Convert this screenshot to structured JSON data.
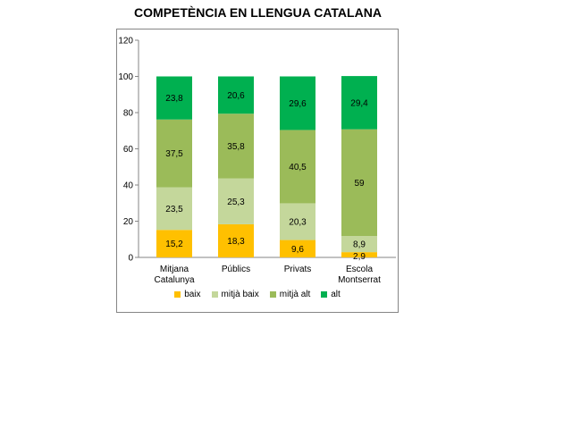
{
  "title": "COMPETÈNCIA EN LLENGUA CATALANA",
  "chart_data": {
    "type": "bar",
    "stacked": true,
    "title": "COMPETÈNCIA EN LLENGUA CATALANA",
    "categories": [
      [
        "Mitjana",
        "Catalunya"
      ],
      [
        "Públics"
      ],
      [
        "Privats"
      ],
      [
        "Escola",
        "Montserrat"
      ]
    ],
    "series": [
      {
        "name": "baix",
        "color": "#FFC000",
        "values": [
          15.2,
          18.3,
          9.6,
          2.9
        ]
      },
      {
        "name": "mitjà baix",
        "color": "#C4D79B",
        "values": [
          23.5,
          25.3,
          20.3,
          8.9
        ]
      },
      {
        "name": "mitjà alt",
        "color": "#9BBB59",
        "values": [
          37.5,
          35.8,
          40.5,
          59
        ]
      },
      {
        "name": "alt",
        "color": "#00B050",
        "values": [
          23.8,
          20.6,
          29.6,
          29.4
        ]
      }
    ],
    "value_labels": [
      [
        "15,2",
        "18,3",
        "9,6",
        "2,9"
      ],
      [
        "23,5",
        "25,3",
        "20,3",
        "8,9"
      ],
      [
        "37,5",
        "35,8",
        "40,5",
        "59"
      ],
      [
        "23,8",
        "20,6",
        "29,6",
        "29,4"
      ]
    ],
    "yticks": [
      "0",
      "20",
      "40",
      "60",
      "80",
      "100",
      "120"
    ],
    "ylim": [
      0,
      120
    ],
    "legend_position": "bottom",
    "grid": false
  }
}
